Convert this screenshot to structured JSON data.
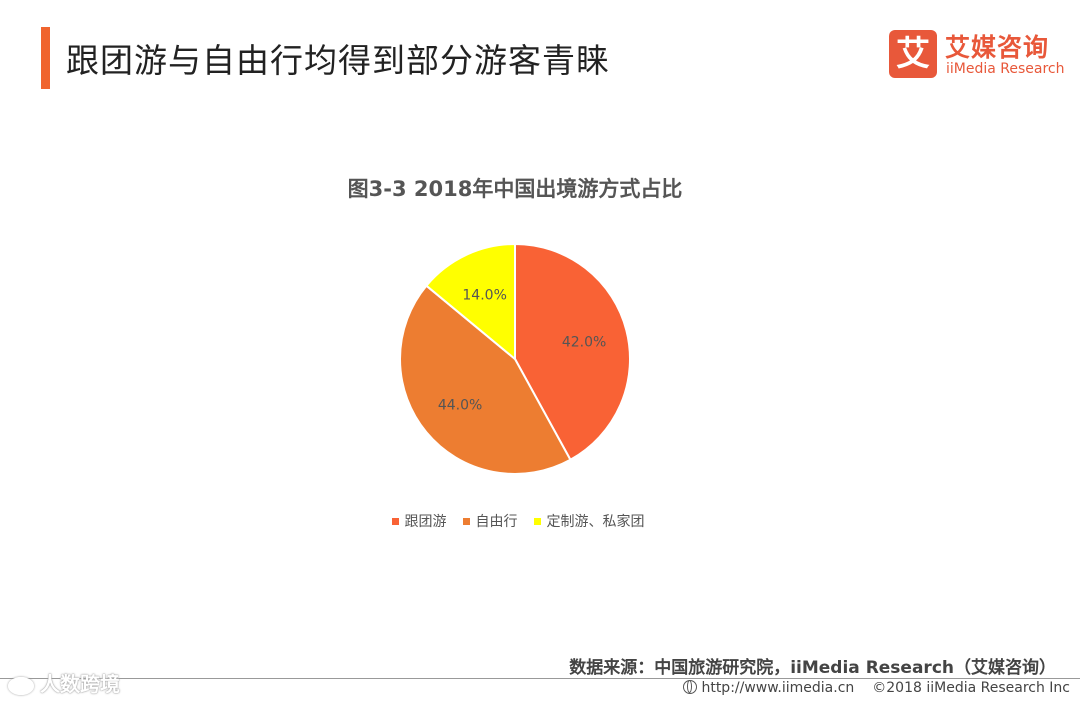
{
  "header": {
    "title": "跟团游与自由行均得到部分游客青睐",
    "accent_color": "#F0642E"
  },
  "logo": {
    "mark": "艾",
    "name_cn": "艾媒咨询",
    "name_en": "iiMedia Research",
    "color": "#E8583A"
  },
  "chart_data": {
    "type": "pie",
    "title": "图3-3 2018年中国出境游方式占比",
    "categories": [
      "跟团游",
      "自由行",
      "定制游、私家团"
    ],
    "values": [
      42.0,
      44.0,
      14.0
    ],
    "labels": [
      "42.0%",
      "44.0%",
      "14.0%"
    ],
    "colors": [
      "#F96235",
      "#ED7D31",
      "#FFFF00"
    ],
    "start_angle": "12 o'clock",
    "direction": "clockwise",
    "legend_position": "bottom"
  },
  "source": {
    "text": "数据来源：中国旅游研究院，iiMedia Research（艾媒咨询）"
  },
  "footer": {
    "url": "http://www.iimedia.cn",
    "copyright": "©2018 iiMedia Research Inc",
    "watermark": "人数跨境",
    "globe_icon": "globe-icon",
    "weibo_icon": "weibo-icon"
  }
}
